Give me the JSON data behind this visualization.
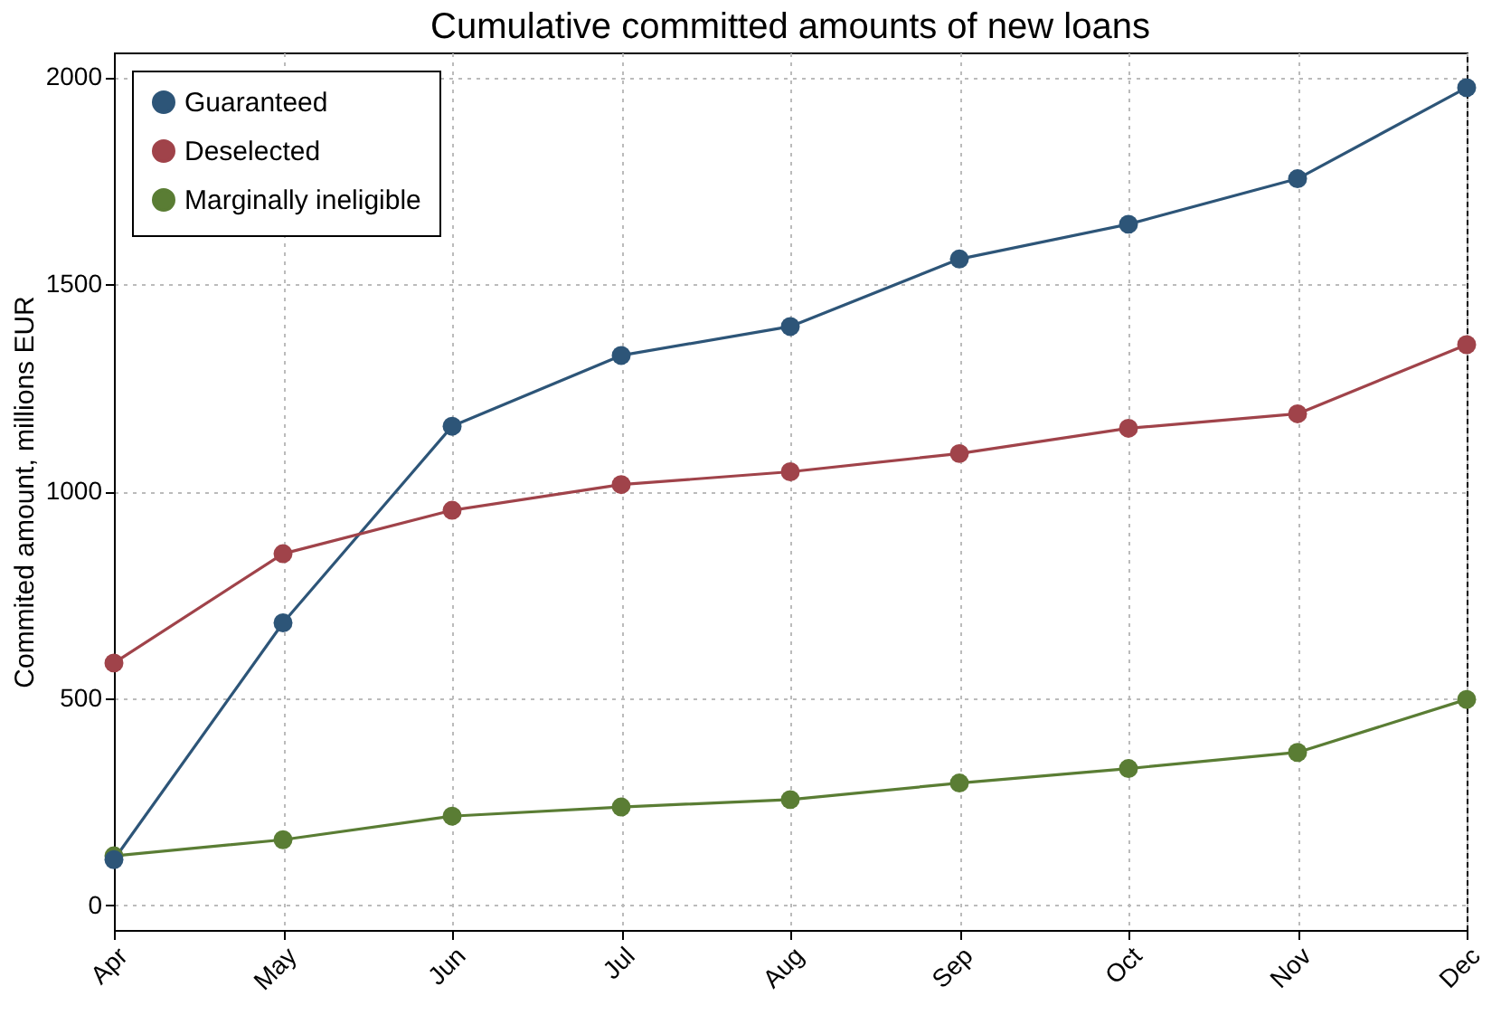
{
  "chart_data": {
    "type": "line",
    "title": "Cumulative committed amounts of new loans",
    "ylabel": "Commited amount, millions EUR",
    "categories": [
      "Apr",
      "May",
      "Jun",
      "Jul",
      "Aug",
      "Sep",
      "Oct",
      "Nov",
      "Dec"
    ],
    "series": [
      {
        "name": "Guaranteed",
        "color": "#2d5578",
        "values": [
          110,
          682,
          1157,
          1328,
          1398,
          1561,
          1645,
          1755,
          1975
        ]
      },
      {
        "name": "Deselected",
        "color": "#a0434a",
        "values": [
          585,
          849,
          954,
          1016,
          1047,
          1091,
          1152,
          1187,
          1354
        ]
      },
      {
        "name": "Marginally ineligible",
        "color": "#5a7d34",
        "values": [
          119,
          158,
          215,
          237,
          255,
          295,
          330,
          369,
          497
        ]
      }
    ],
    "ylim": [
      -60,
      2060
    ],
    "yticks": [
      0,
      500,
      1000,
      1500,
      2000
    ],
    "grid": true,
    "legend": "top left",
    "marker": "circle",
    "line_style": "solid"
  }
}
